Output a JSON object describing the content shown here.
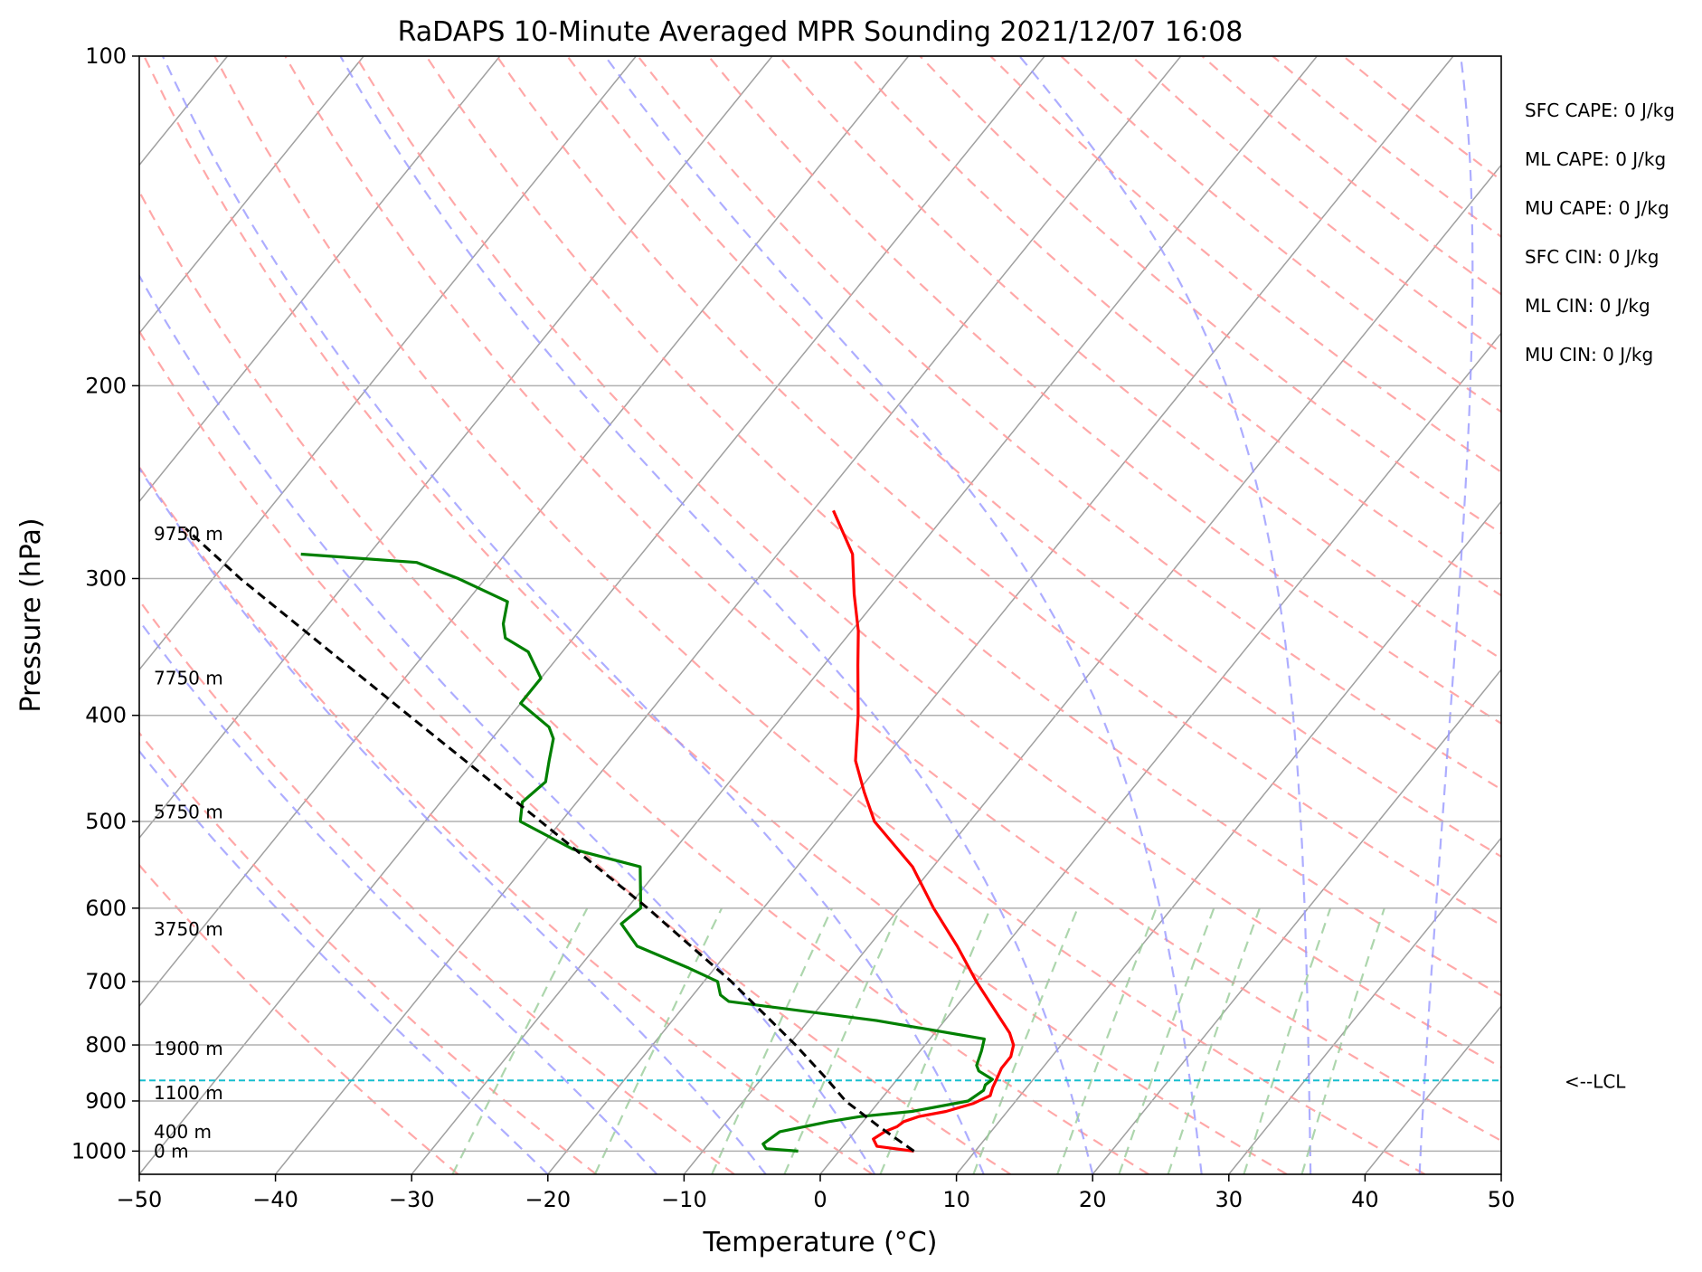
{
  "chart_data": {
    "type": "line",
    "title": "RaDAPS 10-Minute Averaged MPR Sounding 2021/12/07 16:08",
    "xlabel": "Temperature (°C)",
    "ylabel": "Pressure (hPa)",
    "xlim": [
      -50,
      50
    ],
    "ylim": [
      1050,
      100
    ],
    "y_scale": "log",
    "grid": true,
    "x_ticks": [
      -50,
      -40,
      -30,
      -20,
      -10,
      0,
      10,
      20,
      30,
      40,
      50
    ],
    "x_tick_labels": [
      "−50",
      "−40",
      "−30",
      "−20",
      "−10",
      "0",
      "10",
      "20",
      "30",
      "40",
      "50"
    ],
    "y_ticks": [
      100,
      200,
      300,
      400,
      500,
      600,
      700,
      800,
      900,
      1000
    ],
    "y_tick_labels": [
      "100",
      "200",
      "300",
      "400",
      "500",
      "600",
      "700",
      "800",
      "900",
      "1000"
    ],
    "skew": true,
    "series": [
      {
        "role": "temperature",
        "color": "#ff0000",
        "pressure": [
          1000,
          990,
          975,
          960,
          950,
          940,
          930,
          920,
          905,
          890,
          875,
          860,
          840,
          820,
          800,
          780,
          750,
          700,
          650,
          600,
          550,
          500,
          470,
          440,
          400,
          360,
          335,
          310,
          285,
          260
        ],
        "temperature": [
          5.5,
          2.5,
          1.8,
          2.2,
          2.8,
          3.0,
          3.8,
          5.5,
          7.0,
          7.8,
          7.5,
          7.3,
          7.0,
          7.0,
          6.5,
          5.5,
          3.5,
          0.0,
          -3.5,
          -7.5,
          -11.5,
          -17.0,
          -19.5,
          -22.0,
          -24.5,
          -27.5,
          -29.5,
          -32.0,
          -34.5,
          -38.5
        ]
      },
      {
        "role": "dewpoint",
        "color": "#008000",
        "pressure": [
          1000,
          995,
          985,
          960,
          940,
          930,
          920,
          900,
          880,
          870,
          860,
          845,
          835,
          810,
          790,
          760,
          730,
          720,
          700,
          680,
          650,
          620,
          600,
          550,
          530,
          500,
          480,
          460,
          440,
          420,
          410,
          390,
          370,
          350,
          340,
          330,
          315,
          300,
          290,
          285
        ],
        "temperature": [
          -3.0,
          -5.5,
          -6.0,
          -5.5,
          -2.5,
          -0.5,
          3.0,
          6.5,
          7.0,
          6.8,
          7.0,
          5.5,
          5.0,
          4.5,
          4.0,
          -5.0,
          -17.0,
          -18.0,
          -19.0,
          -22.0,
          -27.0,
          -29.5,
          -29.0,
          -31.5,
          -37.5,
          -43.0,
          -44.0,
          -43.5,
          -44.5,
          -45.5,
          -46.5,
          -50.0,
          -50.0,
          -52.5,
          -55.0,
          -56.0,
          -57.0,
          -62.0,
          -66.0,
          -75.0
        ]
      },
      {
        "role": "parcel",
        "color": "#000000",
        "pressure": [
          1000,
          950,
          900,
          862,
          800,
          700,
          600,
          500,
          400,
          300,
          270
        ],
        "temperature": [
          5.5,
          1.5,
          -2.5,
          -5.0,
          -9.5,
          -18.0,
          -28.5,
          -41.5,
          -57.5,
          -78.0,
          -85.0
        ]
      }
    ],
    "lcl": {
      "pressure": 862,
      "label": "<--LCL",
      "color": "#17becf"
    },
    "height_labels": [
      {
        "pressure": 1000,
        "label": "0 m"
      },
      {
        "pressure": 960,
        "label": "400 m"
      },
      {
        "pressure": 885,
        "label": "1100 m"
      },
      {
        "pressure": 806,
        "label": "1900 m"
      },
      {
        "pressure": 627,
        "label": "3750 m"
      },
      {
        "pressure": 490,
        "label": "5750 m"
      },
      {
        "pressure": 370,
        "label": "7750 m"
      },
      {
        "pressure": 273,
        "label": "9750 m"
      }
    ],
    "stats": [
      "SFC CAPE: 0 J/kg",
      "ML CAPE: 0 J/kg",
      "MU CAPE: 0 J/kg",
      "SFC CIN: 0 J/kg",
      "ML CIN: 0 J/kg",
      "MU CIN: 0 J/kg"
    ],
    "background_lines": {
      "isotherm_color": "#a0a0a0",
      "dry_adiabat_color": "#ff9999",
      "moist_adiabat_color": "#9999ff",
      "mixing_ratio_color": "#99cc99"
    }
  }
}
